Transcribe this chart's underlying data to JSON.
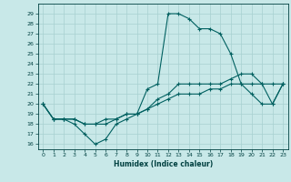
{
  "xlabel": "Humidex (Indice chaleur)",
  "bg_color": "#c8e8e8",
  "line_color": "#006060",
  "grid_color": "#a8d0d0",
  "xlim": [
    -0.5,
    23.5
  ],
  "ylim": [
    15.5,
    30
  ],
  "yticks": [
    16,
    17,
    18,
    19,
    20,
    21,
    22,
    23,
    24,
    25,
    26,
    27,
    28,
    29
  ],
  "xticks": [
    0,
    1,
    2,
    3,
    4,
    5,
    6,
    7,
    8,
    9,
    10,
    11,
    12,
    13,
    14,
    15,
    16,
    17,
    18,
    19,
    20,
    21,
    22,
    23
  ],
  "line1_x": [
    0,
    1,
    2,
    3,
    4,
    5,
    6,
    7,
    8,
    9,
    10,
    11,
    12,
    13,
    14,
    15,
    16,
    17,
    18,
    19,
    20,
    21,
    22,
    23
  ],
  "line1_y": [
    20,
    18.5,
    18.5,
    18,
    17,
    16,
    16.5,
    18,
    18.5,
    19,
    21.5,
    22,
    29,
    29,
    28.5,
    27.5,
    27.5,
    27,
    25,
    22,
    21,
    20,
    20,
    22
  ],
  "line2_x": [
    0,
    1,
    2,
    3,
    4,
    5,
    6,
    7,
    8,
    9,
    10,
    11,
    12,
    13,
    14,
    15,
    16,
    17,
    18,
    19,
    20,
    21,
    22,
    23
  ],
  "line2_y": [
    20,
    18.5,
    18.5,
    18.5,
    18,
    18,
    18,
    18.5,
    19,
    19,
    19.5,
    20,
    20.5,
    21,
    21,
    21,
    21.5,
    21.5,
    22,
    22,
    22,
    22,
    22,
    22
  ],
  "line3_x": [
    0,
    1,
    2,
    3,
    4,
    5,
    6,
    7,
    8,
    9,
    10,
    11,
    12,
    13,
    14,
    15,
    16,
    17,
    18,
    19,
    20,
    21,
    22,
    23
  ],
  "line3_y": [
    20,
    18.5,
    18.5,
    18.5,
    18,
    18,
    18.5,
    18.5,
    19,
    19,
    19.5,
    20.5,
    21,
    22,
    22,
    22,
    22,
    22,
    22.5,
    23,
    23,
    22,
    20,
    22
  ]
}
